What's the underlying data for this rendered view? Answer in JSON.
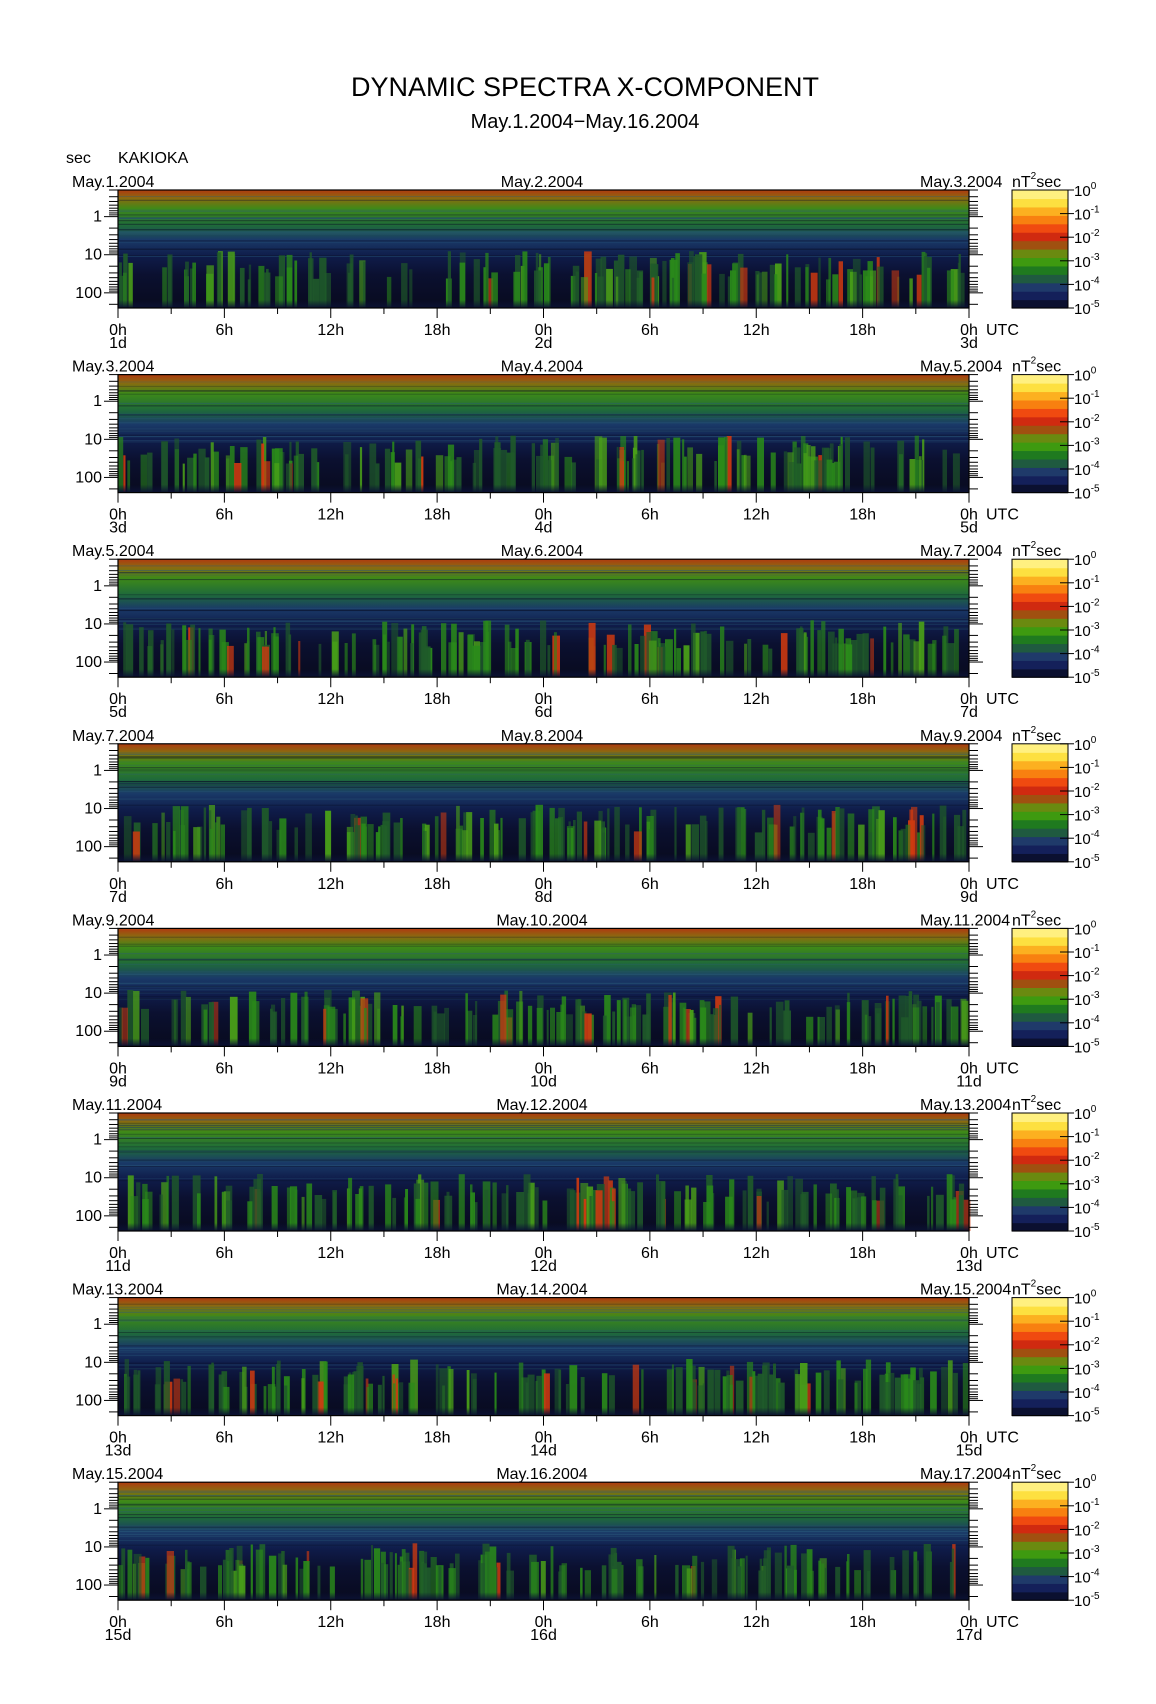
{
  "title": "DYNAMIC SPECTRA X-COMPONENT",
  "subtitle": "May.1.2004−May.16.2004",
  "y_unit": "sec",
  "station": "KAKIOKA",
  "x_unit": "UTC",
  "colorbar": {
    "unit_text": "nT",
    "unit_sup": "2",
    "unit_suffix": "sec",
    "tick_labels": [
      {
        "base": "10",
        "exp": "0"
      },
      {
        "base": "10",
        "exp": "-1"
      },
      {
        "base": "10",
        "exp": "-2"
      },
      {
        "base": "10",
        "exp": "-3"
      },
      {
        "base": "10",
        "exp": "-4"
      },
      {
        "base": "10",
        "exp": "-5"
      }
    ],
    "colors": [
      "#000000",
      "#0b1030",
      "#14205a",
      "#1f3a6a",
      "#1f5a40",
      "#1f7a1f",
      "#3e9a10",
      "#6a8a10",
      "#a05010",
      "#d02a10",
      "#f04a10",
      "#f88010",
      "#fcb020",
      "#fde040",
      "#fff080"
    ]
  },
  "chart_data": {
    "type": "heatmap",
    "title": "DYNAMIC SPECTRA X-COMPONENT",
    "subtitle": "May.1.2004−May.16.2004",
    "station": "KAKIOKA",
    "ylabel": "sec",
    "xlabel": "UTC",
    "y_scale": "log",
    "y_inverted": true,
    "yticks": [
      "1",
      "10",
      "100"
    ],
    "ytick_values": [
      1,
      10,
      100
    ],
    "ylim": [
      0.2,
      250
    ],
    "xticks": [
      "0h",
      "6h",
      "12h",
      "18h",
      "0h",
      "6h",
      "12h",
      "18h",
      "0h"
    ],
    "xtick_hours": [
      0,
      6,
      12,
      18,
      24,
      30,
      36,
      42,
      48
    ],
    "xlim": [
      0,
      48
    ],
    "colorbar_label": "nT²sec",
    "colorbar_range": [
      "1e-5",
      "1e0"
    ],
    "colorbar_scale": "log",
    "panels": [
      {
        "date_left": "May.1.2004",
        "date_mid": "May.2.2004",
        "date_right": "May.3.2004",
        "day_left": "1d",
        "day_mid": "2d",
        "day_right": "3d"
      },
      {
        "date_left": "May.3.2004",
        "date_mid": "May.4.2004",
        "date_right": "May.5.2004",
        "day_left": "3d",
        "day_mid": "4d",
        "day_right": "5d"
      },
      {
        "date_left": "May.5.2004",
        "date_mid": "May.6.2004",
        "date_right": "May.7.2004",
        "day_left": "5d",
        "day_mid": "6d",
        "day_right": "7d"
      },
      {
        "date_left": "May.7.2004",
        "date_mid": "May.8.2004",
        "date_right": "May.9.2004",
        "day_left": "7d",
        "day_mid": "8d",
        "day_right": "9d"
      },
      {
        "date_left": "May.9.2004",
        "date_mid": "May.10.2004",
        "date_right": "May.11.2004",
        "day_left": "9d",
        "day_mid": "10d",
        "day_right": "11d"
      },
      {
        "date_left": "May.11.2004",
        "date_mid": "May.12.2004",
        "date_right": "May.13.2004",
        "day_left": "11d",
        "day_mid": "12d",
        "day_right": "13d"
      },
      {
        "date_left": "May.13.2004",
        "date_mid": "May.14.2004",
        "date_right": "May.15.2004",
        "day_left": "13d",
        "day_mid": "14d",
        "day_right": "15d"
      },
      {
        "date_left": "May.15.2004",
        "date_mid": "May.16.2004",
        "date_right": "May.17.2004",
        "day_left": "15d",
        "day_mid": "16d",
        "day_right": "17d"
      }
    ]
  }
}
